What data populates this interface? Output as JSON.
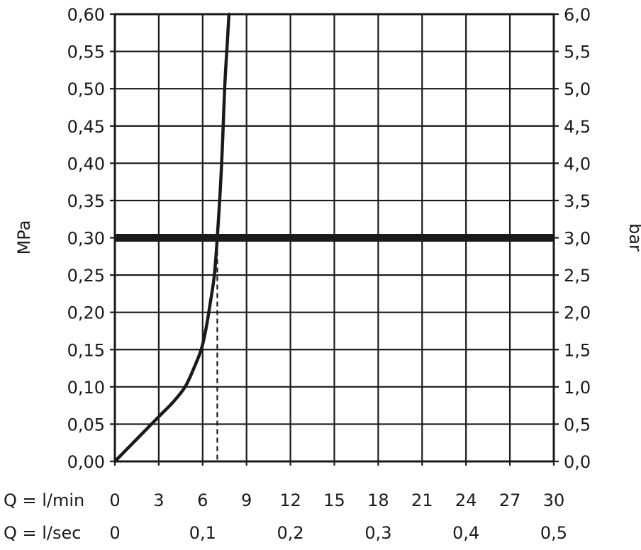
{
  "chart_data": {
    "type": "line",
    "ylabel_left": "MPa",
    "ylabel_right": "bar",
    "ylim": [
      0,
      0.6
    ],
    "y_ticks_left": [
      "0,00",
      "0,05",
      "0,10",
      "0,15",
      "0,20",
      "0,25",
      "0,30",
      "0,35",
      "0,40",
      "0,45",
      "0,50",
      "0,55",
      "0,60"
    ],
    "y_ticks_right": [
      "0,0",
      "0,5",
      "1,0",
      "1,5",
      "2,0",
      "2,5",
      "3,0",
      "3,5",
      "4,0",
      "4,5",
      "5,0",
      "5,5",
      "6,0"
    ],
    "xlim": [
      0,
      30
    ],
    "x_label_lmin": "Q = l/min",
    "x_ticks_lmin": [
      {
        "value": 0,
        "label": "0"
      },
      {
        "value": 3,
        "label": "3"
      },
      {
        "value": 6,
        "label": "6"
      },
      {
        "value": 9,
        "label": "9"
      },
      {
        "value": 12,
        "label": "12"
      },
      {
        "value": 15,
        "label": "15"
      },
      {
        "value": 18,
        "label": "18"
      },
      {
        "value": 21,
        "label": "21"
      },
      {
        "value": 24,
        "label": "24"
      },
      {
        "value": 27,
        "label": "27"
      },
      {
        "value": 30,
        "label": "30"
      }
    ],
    "x_label_lsec": "Q = l/sec",
    "x_ticks_lsec": [
      {
        "value": 0,
        "label": "0"
      },
      {
        "value": 6,
        "label": "0,1"
      },
      {
        "value": 12,
        "label": "0,2"
      },
      {
        "value": 18,
        "label": "0,3"
      },
      {
        "value": 24,
        "label": "0,4"
      },
      {
        "value": 30,
        "label": "0,5"
      }
    ],
    "grid": true,
    "series": [
      {
        "x": [
          0,
          1.5,
          3,
          4,
          4.8,
          5.4,
          5.9,
          6.2,
          6.5,
          6.8,
          7.0,
          7.3,
          7.5,
          7.65,
          7.8
        ],
        "y": [
          0,
          0.03,
          0.06,
          0.08,
          0.1,
          0.125,
          0.15,
          0.175,
          0.21,
          0.25,
          0.3,
          0.4,
          0.5,
          0.55,
          0.6
        ]
      }
    ],
    "reference_line": {
      "y": 0.3
    },
    "drop_line": {
      "x": 7.0,
      "y_from": 0.3,
      "y_to": 0
    }
  }
}
